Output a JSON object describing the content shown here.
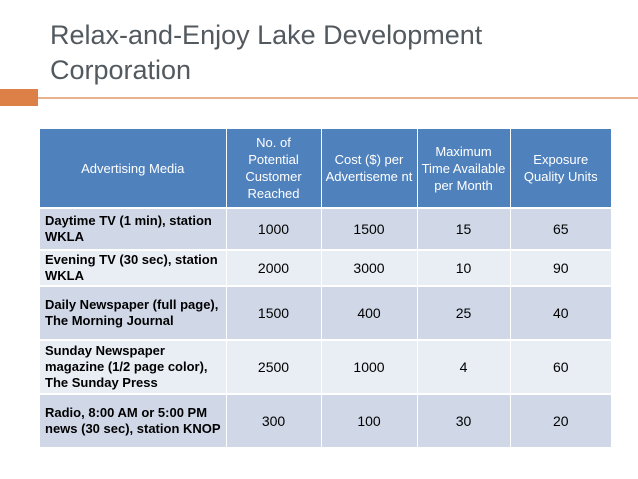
{
  "slide": {
    "title_line1": "Relax-and-Enjoy Lake Development",
    "title_line2": "Corporation"
  },
  "table": {
    "headers": [
      "Advertising Media",
      "No. of Potential Customer Reached",
      "Cost ($) per Advertiseme nt",
      "Maximum Time Available per Month",
      "Exposure Quality Units"
    ],
    "rows": [
      {
        "media": "Daytime TV (1 min), station WKLA",
        "customers": "1000",
        "cost": "1500",
        "max_time": "15",
        "exposure": "65"
      },
      {
        "media": "Evening TV (30 sec), station WKLA",
        "customers": "2000",
        "cost": "3000",
        "max_time": "10",
        "exposure": "90"
      },
      {
        "media": "Daily Newspaper (full page), The Morning Journal",
        "customers": "1500",
        "cost": "400",
        "max_time": "25",
        "exposure": "40"
      },
      {
        "media": "Sunday Newspaper magazine (1/2 page color), The Sunday Press",
        "customers": "2500",
        "cost": "1000",
        "max_time": "4",
        "exposure": "60"
      },
      {
        "media": "Radio, 8:00 AM or 5:00 PM news (30 sec), station KNOP",
        "customers": "300",
        "cost": "100",
        "max_time": "30",
        "exposure": "20"
      }
    ]
  },
  "colors": {
    "header_bg": "#4f81bd",
    "row_odd": "#d0d8e8",
    "row_even": "#e9edf4",
    "accent": "#dd8047"
  }
}
